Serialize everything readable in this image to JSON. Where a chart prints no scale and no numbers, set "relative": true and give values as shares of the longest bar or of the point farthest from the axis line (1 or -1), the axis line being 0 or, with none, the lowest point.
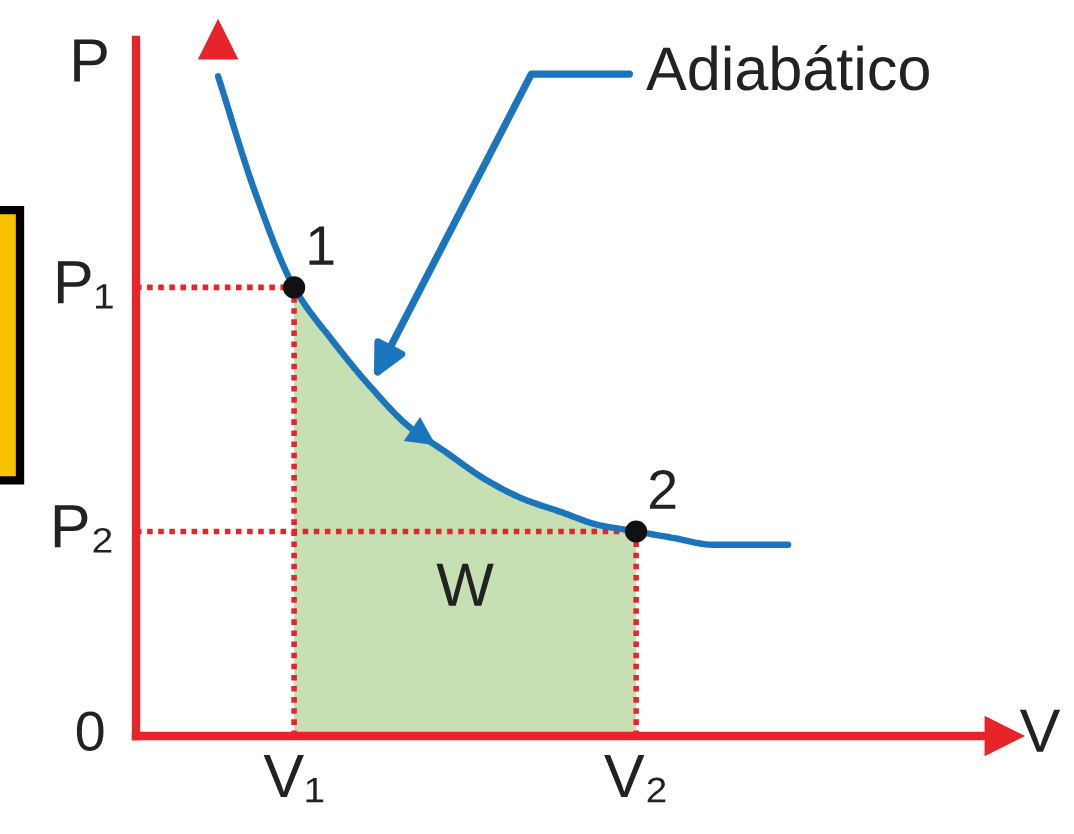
{
  "chart_data": {
    "type": "line",
    "relative": true,
    "xlabel": "V",
    "ylabel": "P",
    "categories": [
      null,
      null,
      "V₁",
      null,
      null,
      null,
      null,
      null,
      null,
      null,
      null,
      "V₂",
      null,
      null,
      null,
      null
    ],
    "series": [
      {
        "type": "area",
        "name": "W",
        "color": "#c6e0b4",
        "values": [
          null,
          null,
          0.68,
          0.6,
          0.53,
          0.47,
          0.43,
          0.39,
          0.36,
          0.34,
          0.32,
          0.31,
          null,
          null,
          null,
          null
        ]
      },
      {
        "name": "Adiabático",
        "color": "#1b75bc",
        "values": [
          1,
          0.82,
          0.68,
          0.6,
          0.53,
          0.47,
          0.43,
          0.39,
          0.36,
          0.34,
          0.32,
          0.31,
          0.3,
          0.29,
          0.29,
          0.29
        ]
      },
      {
        "type": "lollipop",
        "x": [
          "V₁",
          "V₂"
        ],
        "values": [
          0.68,
          0.31
        ],
        "color": "#111111",
        "marker": "circle",
        "line_style": "dotted"
      }
    ],
    "ref_lines": [
      {
        "axis": "y",
        "value": 0.68,
        "label": "P₁",
        "color": "#e8242b",
        "line_style": "dotted"
      },
      {
        "axis": "y",
        "value": 0.31,
        "label": "P₂",
        "color": "#e8242b",
        "line_style": "dotted"
      }
    ],
    "annotations": [
      {
        "text": "1",
        "x": "V₁",
        "y": 0.68
      },
      {
        "text": "2",
        "x": "V₂",
        "y": 0.31
      },
      "0"
    ]
  }
}
